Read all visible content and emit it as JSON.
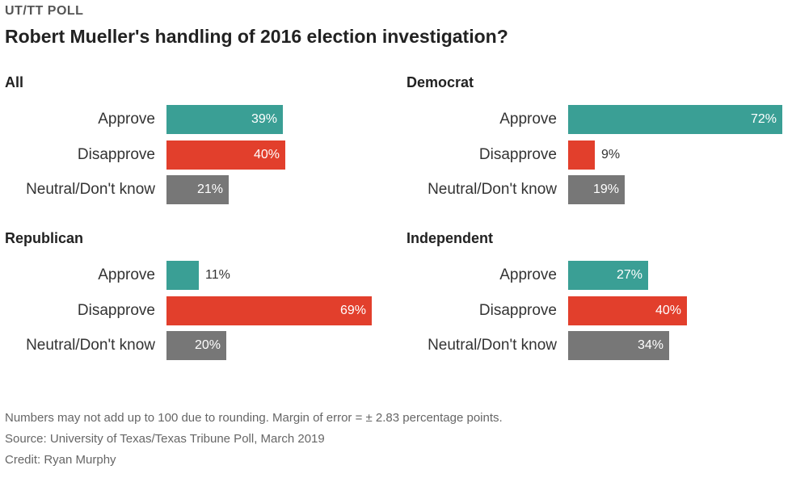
{
  "kicker": "UT/TT POLL",
  "title": "Robert Mueller's handling of 2016 election investigation?",
  "colors": {
    "Approve": "#3a9f95",
    "Disapprove": "#e23f2c",
    "Neutral/Don't know": "#777777"
  },
  "chart_data": {
    "type": "bar",
    "orientation": "horizontal",
    "title": "Robert Mueller's handling of 2016 election investigation?",
    "xlim": [
      0,
      72
    ],
    "categories": [
      "Approve",
      "Disapprove",
      "Neutral/Don't know"
    ],
    "panels": [
      {
        "name": "All",
        "values": [
          39,
          40,
          21
        ],
        "labels": [
          "39%",
          "40%",
          "21%"
        ]
      },
      {
        "name": "Democrat",
        "values": [
          72,
          9,
          19
        ],
        "labels": [
          "72%",
          "9%",
          "19%"
        ]
      },
      {
        "name": "Republican",
        "values": [
          11,
          69,
          20
        ],
        "labels": [
          "11%",
          "69%",
          "20%"
        ]
      },
      {
        "name": "Independent",
        "values": [
          27,
          40,
          34
        ],
        "labels": [
          "27%",
          "40%",
          "34%"
        ]
      }
    ]
  },
  "footer": {
    "note": "Numbers may not add up to 100 due to rounding. Margin of error = ± 2.83 percentage points.",
    "source": "Source: University of Texas/Texas Tribune Poll, March 2019",
    "credit": "Credit: Ryan Murphy"
  }
}
